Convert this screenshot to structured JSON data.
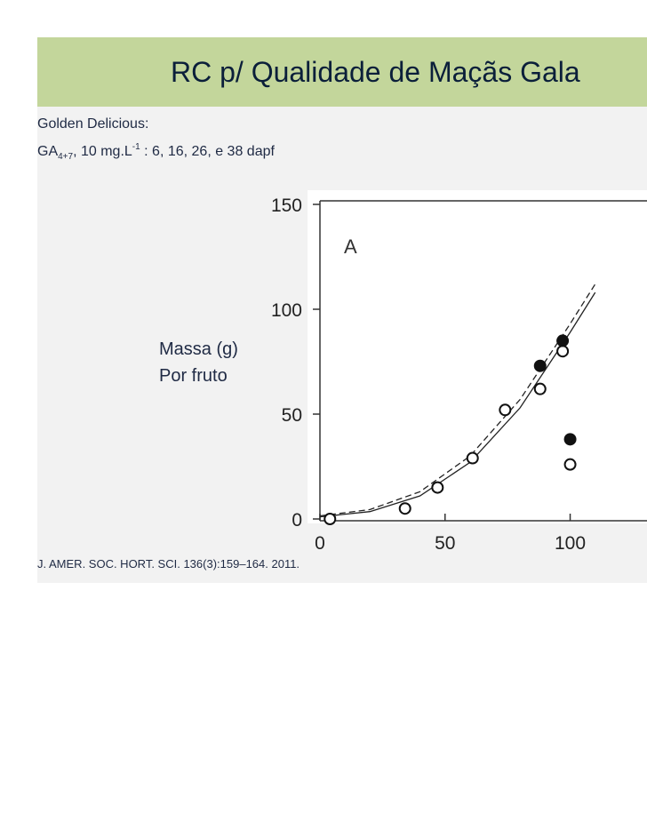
{
  "slide": {
    "title": "RC p/ Qualidade de Maçãs Gala",
    "note_line1": "Golden Delicious:",
    "note_line2_prefix": "GA",
    "note_line2_sub": "4+7",
    "note_line2_mid": ", 10 mg.L",
    "note_line2_sup": "-1",
    "note_line2_suffix": " : 6, 16, 26, e 38 dapf",
    "ylabel_line1": "Massa (g)",
    "ylabel_line2": "Por fruto",
    "citation": "J. AMER. SOC. HORT. SCI. 136(3):159–164. 2011.",
    "panel_letter": "A"
  },
  "colors": {
    "title_bar": "#c3d69b",
    "slide_bg": "#f2f2f2",
    "text": "#1f2a44"
  },
  "chart_data": {
    "type": "scatter",
    "xlim": [
      0,
      130
    ],
    "ylim": [
      0,
      150
    ],
    "x_ticks": [
      0,
      50,
      100
    ],
    "x_tick_labels": [
      "0",
      "50",
      "100"
    ],
    "y_ticks": [
      0,
      50,
      100,
      150
    ],
    "y_tick_labels": [
      "0",
      "50",
      "100",
      "150"
    ],
    "xlabel": "",
    "ylabel": "Massa (g) Por fruto",
    "grid": false,
    "series": [
      {
        "marker": "open-circle",
        "points": [
          [
            4,
            0
          ],
          [
            34,
            5
          ],
          [
            47,
            15
          ],
          [
            61,
            29
          ],
          [
            74,
            52
          ],
          [
            88,
            62
          ],
          [
            97,
            80
          ],
          [
            100,
            26
          ]
        ]
      },
      {
        "marker": "filled-circle",
        "points": [
          [
            88,
            73
          ],
          [
            97,
            85
          ],
          [
            100,
            38
          ]
        ]
      }
    ],
    "fitted_curves": [
      {
        "style": "solid",
        "points": [
          [
            0,
            1
          ],
          [
            20,
            3.5
          ],
          [
            40,
            11
          ],
          [
            60,
            27
          ],
          [
            80,
            53
          ],
          [
            100,
            89
          ],
          [
            110,
            108
          ]
        ]
      },
      {
        "style": "dashed",
        "points": [
          [
            0,
            1.5
          ],
          [
            20,
            4.5
          ],
          [
            40,
            13
          ],
          [
            60,
            30
          ],
          [
            80,
            57
          ],
          [
            100,
            93
          ],
          [
            110,
            112
          ]
        ]
      }
    ]
  }
}
